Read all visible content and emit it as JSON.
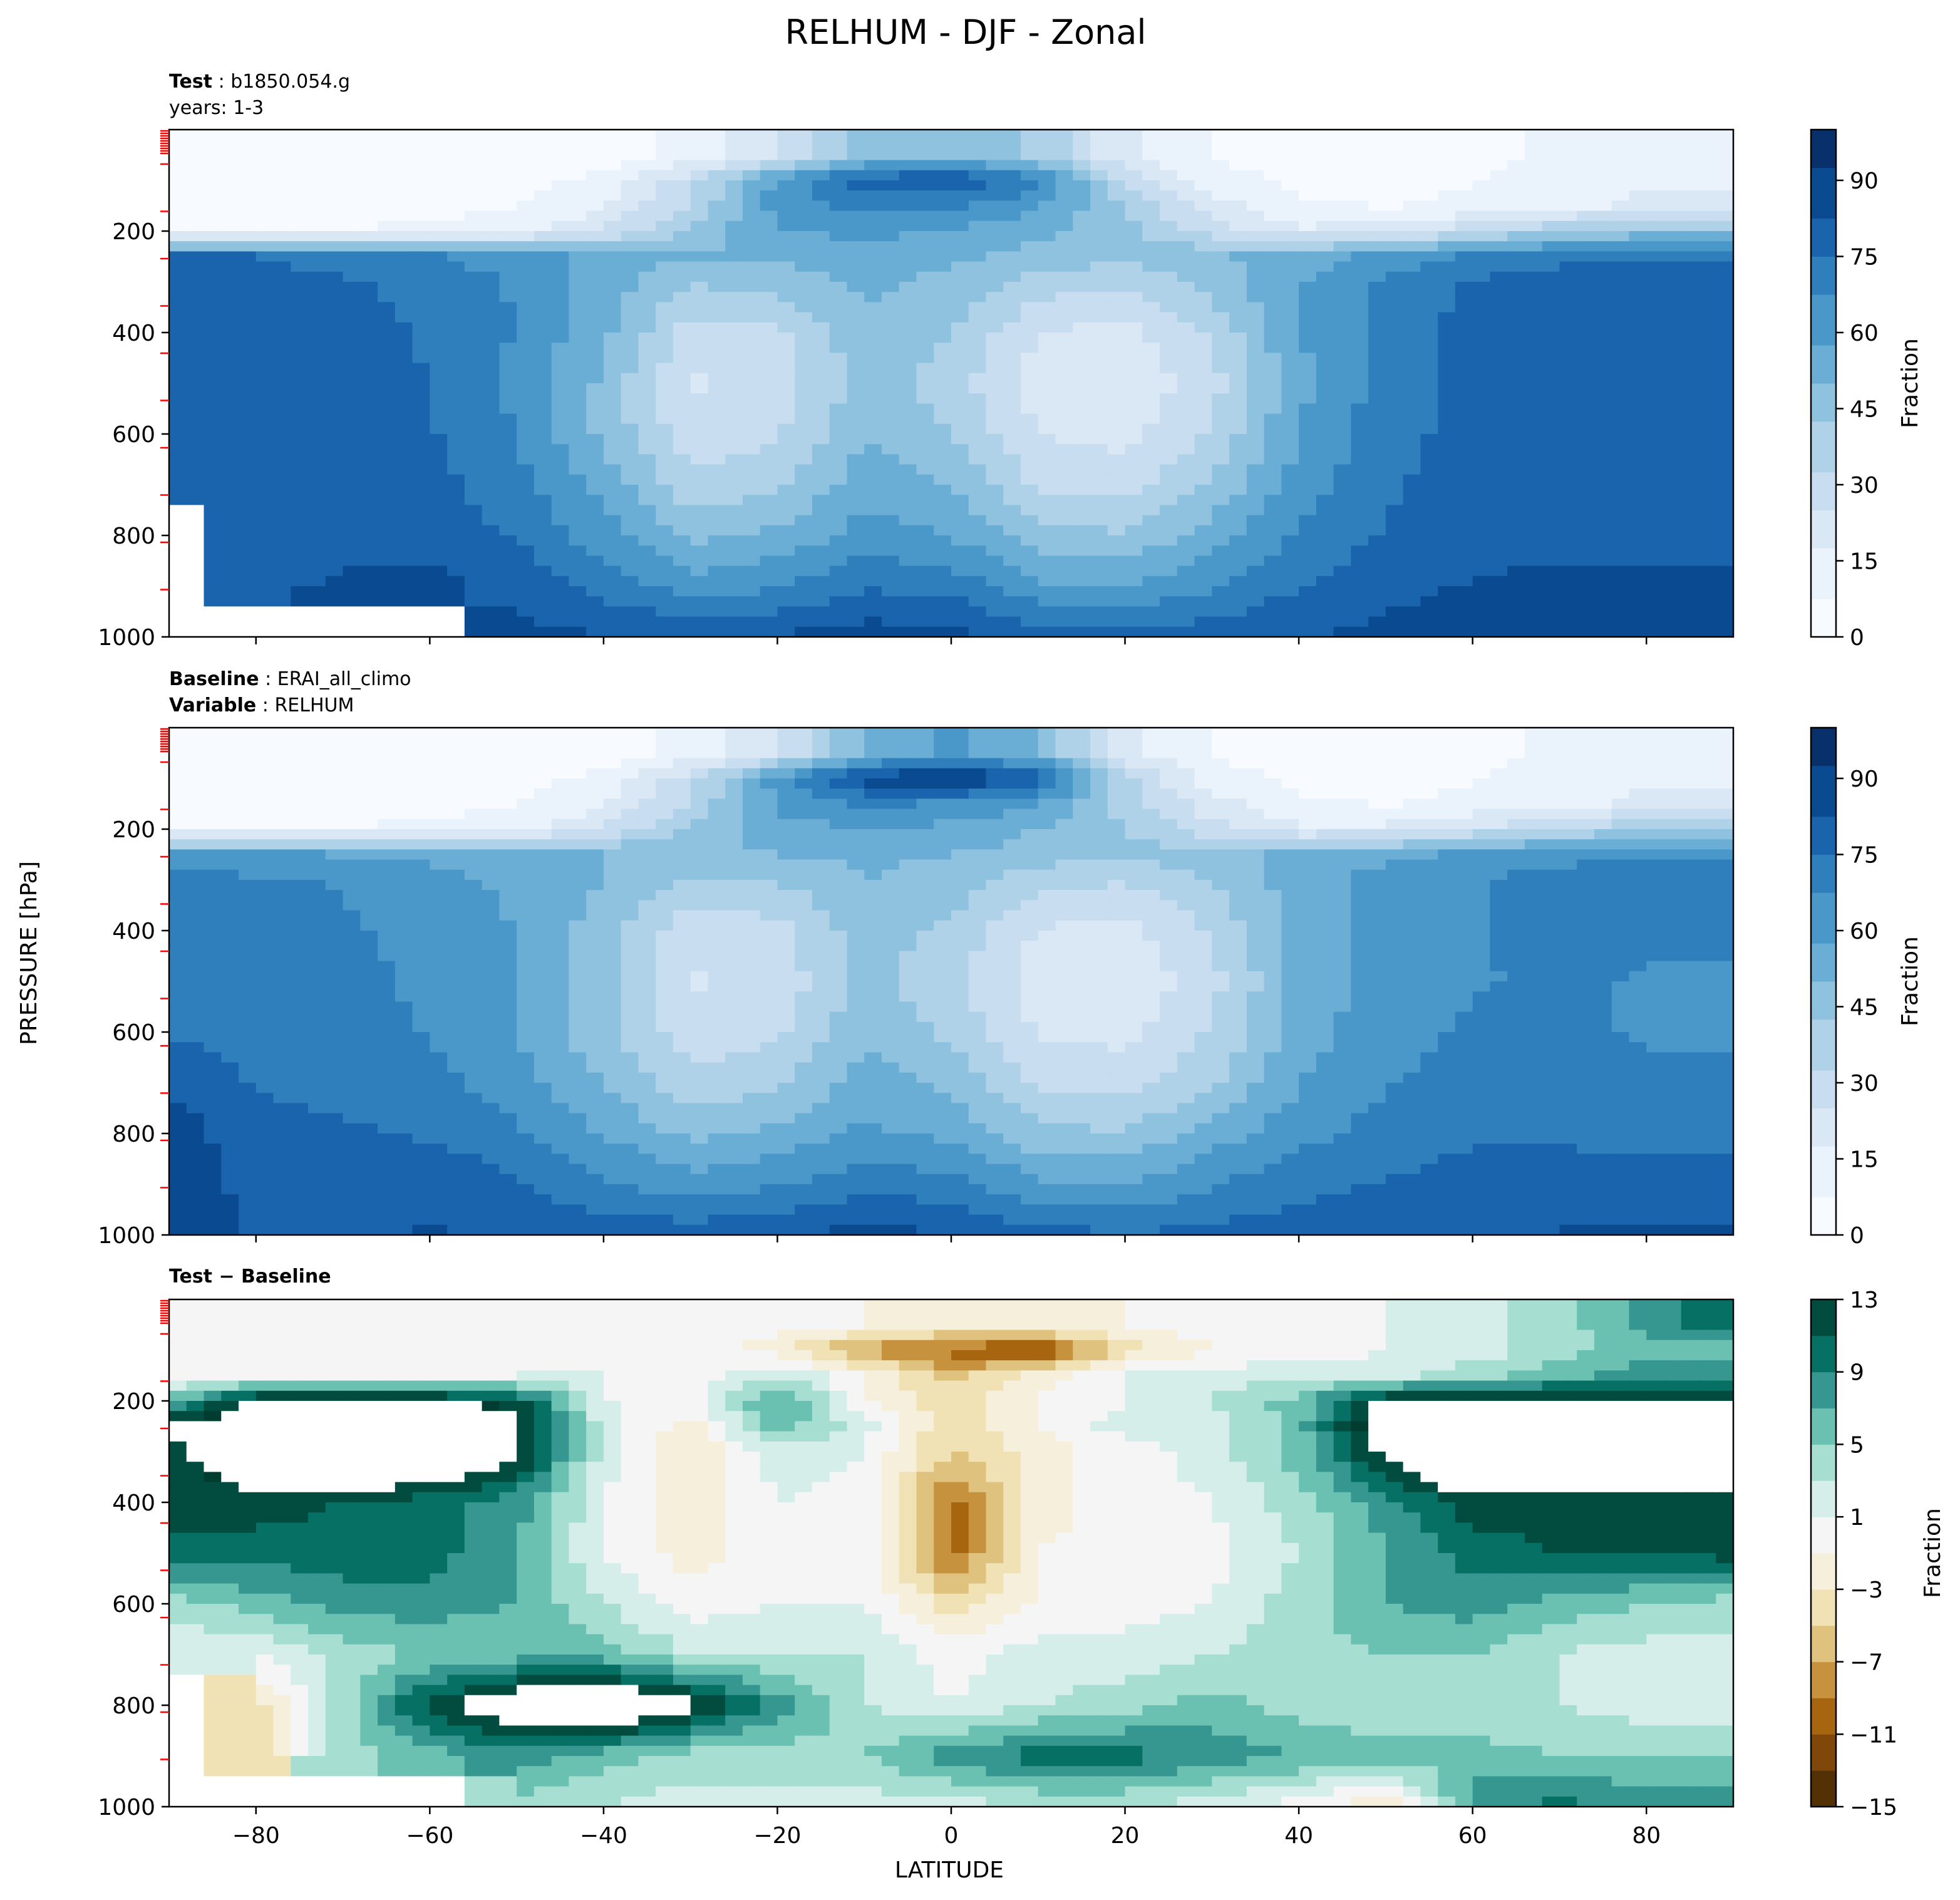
{
  "figure": {
    "title": "RELHUM - DJF - Zonal",
    "ylabel": "PRESSURE [hPa]",
    "xlabel": "LATITUDE"
  },
  "colors": {
    "blues": [
      "#f7fbff",
      "#eaf2fb",
      "#dae8f6",
      "#c9ddf0",
      "#b0d2e8",
      "#8fc2de",
      "#6aaed6",
      "#4a98c9",
      "#2f7fbc",
      "#1a64ad",
      "#0a4a90",
      "#08306b"
    ],
    "brbg_neg": [
      "#543005",
      "#7f4709",
      "#a7650f",
      "#c7923e",
      "#dfc27d",
      "#f1e2b6",
      "#f6efdc"
    ],
    "brbg_pos": [
      "#f5f5f5",
      "#d5eee9",
      "#a6dfd2",
      "#6bc1b1",
      "#35978f",
      "#077065",
      "#014b3f",
      "#003c30"
    ],
    "red_tick": "#ff0000"
  },
  "chart_data": [
    {
      "type": "heatmap",
      "panel": "test",
      "header": {
        "bold_label": "Test",
        "value": "b1850.054.g",
        "line2": "years: 1-3"
      },
      "x_ticks": [
        -80,
        -60,
        -40,
        -20,
        0,
        20,
        40,
        60,
        80
      ],
      "xlim": [
        -90,
        90
      ],
      "y_ticks": [
        200,
        400,
        600,
        800,
        1000
      ],
      "ylim": [
        1000,
        0
      ],
      "colorbar": {
        "label": "Fraction",
        "ticks": [
          0,
          15,
          30,
          45,
          60,
          75,
          90
        ],
        "range": [
          0,
          100
        ]
      },
      "lat": [
        -90,
        -80,
        -70,
        -60,
        -50,
        -40,
        -30,
        -20,
        -10,
        0,
        10,
        20,
        30,
        40,
        50,
        60,
        70,
        80,
        90
      ],
      "lev": [
        50,
        100,
        150,
        200,
        250,
        300,
        400,
        500,
        600,
        700,
        800,
        900,
        1000
      ],
      "values": [
        [
          2,
          2,
          2,
          2,
          3,
          5,
          10,
          25,
          45,
          50,
          40,
          18,
          8,
          4,
          4,
          6,
          10,
          14,
          14
        ],
        [
          3,
          3,
          3,
          4,
          6,
          10,
          30,
          60,
          80,
          85,
          70,
          30,
          12,
          6,
          6,
          8,
          12,
          16,
          16
        ],
        [
          4,
          4,
          4,
          5,
          8,
          15,
          35,
          62,
          70,
          68,
          60,
          40,
          20,
          10,
          8,
          10,
          14,
          18,
          18
        ],
        [
          6,
          8,
          9,
          10,
          14,
          25,
          45,
          58,
          60,
          58,
          52,
          45,
          30,
          18,
          20,
          30,
          40,
          45,
          45
        ],
        [
          75,
          75,
          72,
          68,
          62,
          55,
          50,
          52,
          55,
          52,
          46,
          45,
          48,
          55,
          60,
          68,
          72,
          74,
          74
        ],
        [
          78,
          78,
          76,
          72,
          66,
          55,
          42,
          45,
          52,
          48,
          38,
          35,
          45,
          58,
          68,
          76,
          80,
          82,
          82
        ],
        [
          80,
          79,
          78,
          74,
          66,
          52,
          30,
          32,
          48,
          42,
          25,
          22,
          35,
          58,
          70,
          78,
          82,
          80,
          80
        ],
        [
          80,
          80,
          79,
          75,
          65,
          48,
          24,
          28,
          45,
          38,
          20,
          18,
          30,
          56,
          70,
          78,
          80,
          78,
          78
        ],
        [
          80,
          80,
          80,
          76,
          66,
          48,
          28,
          32,
          50,
          42,
          25,
          22,
          34,
          58,
          72,
          78,
          79,
          77,
          77
        ],
        [
          80,
          80,
          80,
          78,
          70,
          55,
          36,
          40,
          55,
          50,
          32,
          30,
          42,
          62,
          74,
          78,
          78,
          76,
          76
        ],
        [
          null,
          80,
          82,
          80,
          74,
          62,
          48,
          52,
          62,
          58,
          45,
          42,
          55,
          68,
          76,
          79,
          80,
          80,
          80
        ],
        [
          null,
          82,
          84,
          86,
          82,
          72,
          62,
          66,
          74,
          72,
          60,
          58,
          66,
          75,
          80,
          84,
          86,
          86,
          86
        ],
        [
          null,
          null,
          null,
          null,
          85,
          84,
          82,
          84,
          88,
          86,
          80,
          78,
          80,
          82,
          86,
          90,
          92,
          90,
          90
        ]
      ]
    },
    {
      "type": "heatmap",
      "panel": "baseline",
      "header": {
        "bold_label": "Baseline",
        "value": "ERAI_all_climo",
        "bold_label2": "Variable",
        "value2": "RELHUM"
      },
      "x_ticks": [
        -80,
        -60,
        -40,
        -20,
        0,
        20,
        40,
        60,
        80
      ],
      "xlim": [
        -90,
        90
      ],
      "y_ticks": [
        200,
        400,
        600,
        800,
        1000
      ],
      "ylim": [
        1000,
        0
      ],
      "colorbar": {
        "label": "Fraction",
        "ticks": [
          0,
          15,
          30,
          45,
          60,
          75,
          90
        ],
        "range": [
          0,
          100
        ]
      },
      "lat": [
        -90,
        -80,
        -70,
        -60,
        -50,
        -40,
        -30,
        -20,
        -10,
        0,
        10,
        20,
        30,
        40,
        50,
        60,
        70,
        80,
        90
      ],
      "lev": [
        50,
        100,
        150,
        200,
        250,
        300,
        400,
        500,
        600,
        700,
        800,
        900,
        1000
      ],
      "values": [
        [
          2,
          2,
          2,
          2,
          3,
          5,
          10,
          25,
          50,
          60,
          50,
          20,
          8,
          4,
          4,
          6,
          10,
          14,
          14
        ],
        [
          3,
          3,
          3,
          4,
          6,
          10,
          30,
          62,
          88,
          94,
          82,
          35,
          12,
          6,
          6,
          8,
          12,
          16,
          16
        ],
        [
          4,
          4,
          4,
          5,
          8,
          15,
          35,
          60,
          68,
          66,
          58,
          38,
          20,
          10,
          8,
          10,
          14,
          18,
          18
        ],
        [
          6,
          8,
          9,
          10,
          14,
          25,
          45,
          55,
          58,
          56,
          50,
          42,
          28,
          18,
          18,
          26,
          34,
          40,
          40
        ],
        [
          62,
          60,
          58,
          56,
          52,
          50,
          48,
          50,
          52,
          50,
          46,
          44,
          46,
          52,
          56,
          60,
          64,
          66,
          66
        ],
        [
          70,
          68,
          66,
          62,
          56,
          50,
          40,
          42,
          50,
          46,
          36,
          34,
          42,
          54,
          62,
          66,
          70,
          72,
          72
        ],
        [
          72,
          70,
          68,
          64,
          58,
          46,
          28,
          30,
          46,
          40,
          24,
          22,
          34,
          54,
          62,
          66,
          70,
          68,
          68
        ],
        [
          72,
          70,
          69,
          65,
          58,
          44,
          24,
          28,
          44,
          36,
          20,
          18,
          30,
          52,
          62,
          66,
          68,
          66,
          66
        ],
        [
          74,
          72,
          70,
          66,
          58,
          44,
          28,
          32,
          48,
          40,
          24,
          22,
          34,
          54,
          64,
          68,
          68,
          66,
          66
        ],
        [
          82,
          74,
          72,
          70,
          62,
          50,
          36,
          40,
          54,
          48,
          32,
          30,
          40,
          58,
          66,
          70,
          70,
          68,
          68
        ],
        [
          88,
          78,
          76,
          74,
          68,
          58,
          48,
          52,
          60,
          56,
          44,
          42,
          54,
          64,
          70,
          74,
          74,
          72,
          72
        ],
        [
          90,
          80,
          80,
          82,
          76,
          68,
          62,
          66,
          72,
          70,
          60,
          58,
          66,
          72,
          76,
          78,
          78,
          78,
          78
        ],
        [
          90,
          82,
          82,
          84,
          82,
          80,
          80,
          82,
          86,
          84,
          78,
          76,
          78,
          80,
          82,
          82,
          84,
          84,
          84
        ]
      ]
    },
    {
      "type": "heatmap",
      "panel": "difference",
      "header": {
        "bold_label": "Test − Baseline"
      },
      "x_ticks": [
        -80,
        -60,
        -40,
        -20,
        0,
        20,
        40,
        60,
        80
      ],
      "xlim": [
        -90,
        90
      ],
      "y_ticks": [
        200,
        400,
        600,
        800,
        1000
      ],
      "ylim": [
        1000,
        0
      ],
      "colorbar": {
        "label": "Fraction",
        "ticks": [
          -15,
          -11,
          -7,
          -3,
          1,
          5,
          9,
          13
        ],
        "range": [
          -15,
          13
        ]
      },
      "lat": [
        -90,
        -80,
        -70,
        -60,
        -50,
        -40,
        -30,
        -20,
        -10,
        0,
        10,
        20,
        30,
        40,
        50,
        60,
        70,
        80,
        90
      ],
      "lev": [
        50,
        100,
        150,
        200,
        250,
        300,
        400,
        500,
        600,
        700,
        800,
        900,
        1000
      ],
      "values": [
        [
          0,
          0,
          0,
          0,
          0,
          0,
          0,
          0,
          -1,
          -2,
          -2,
          -1,
          0,
          0,
          1,
          2,
          4,
          8,
          10
        ],
        [
          0,
          0,
          0,
          0,
          0,
          0,
          0,
          -2,
          -8,
          -10,
          -12,
          -4,
          -1,
          0,
          1,
          2,
          4,
          6,
          6
        ],
        [
          0,
          0,
          0,
          0,
          1,
          1,
          0,
          3,
          -1,
          -6,
          -2,
          1,
          2,
          2,
          2,
          4,
          6,
          8,
          8
        ],
        [
          6,
          14,
          14,
          14,
          12,
          1,
          0,
          8,
          -1,
          -4,
          -1,
          1,
          3,
          6,
          14,
          14,
          14,
          14,
          14
        ],
        [
          14,
          16,
          16,
          16,
          14,
          2,
          -2,
          6,
          2,
          -5,
          -1,
          2,
          2,
          6,
          16,
          18,
          18,
          16,
          16
        ],
        [
          12,
          16,
          20,
          18,
          14,
          2,
          -3,
          2,
          1,
          -5,
          -2,
          0,
          2,
          6,
          14,
          20,
          22,
          18,
          18
        ],
        [
          12,
          12,
          11,
          10,
          8,
          1,
          -3,
          1,
          0,
          -10,
          -2,
          0,
          1,
          4,
          8,
          12,
          12,
          12,
          12
        ],
        [
          10,
          10,
          10,
          10,
          7,
          1,
          -2,
          0,
          0,
          -10,
          -1,
          0,
          0,
          3,
          7,
          10,
          11,
          11,
          12
        ],
        [
          4,
          6,
          8,
          8,
          7,
          3,
          0,
          1,
          1,
          -4,
          -1,
          0,
          1,
          4,
          7,
          8,
          6,
          5,
          4
        ],
        [
          1,
          1,
          4,
          5,
          6,
          6,
          3,
          3,
          3,
          0,
          2,
          2,
          3,
          4,
          5,
          5,
          3,
          2,
          2
        ],
        [
          null,
          -4,
          4,
          12,
          16,
          18,
          14,
          8,
          3,
          1,
          3,
          4,
          6,
          4,
          3,
          3,
          3,
          2,
          2
        ],
        [
          null,
          -4,
          4,
          6,
          8,
          6,
          4,
          4,
          5,
          8,
          10,
          10,
          8,
          7,
          6,
          6,
          5,
          5,
          5
        ],
        [
          null,
          null,
          null,
          null,
          4,
          3,
          2,
          2,
          2,
          2,
          3,
          3,
          2,
          0,
          -3,
          8,
          10,
          8,
          8
        ]
      ]
    }
  ]
}
